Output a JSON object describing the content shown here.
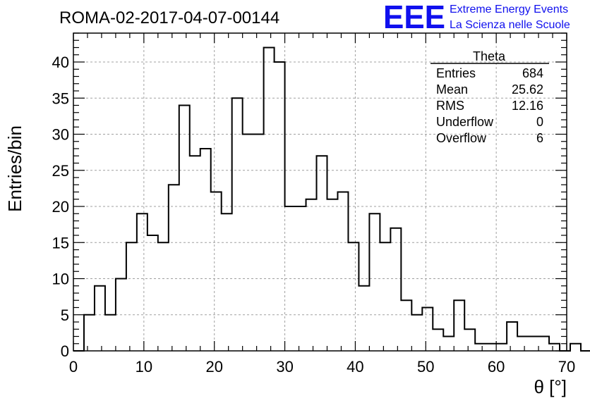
{
  "chart_data": {
    "type": "bar",
    "style": "step-histogram",
    "title": "ROMA-02-2017-04-07-00144",
    "xlabel": "θ [°]",
    "ylabel": "Entries/bin",
    "xlim": [
      0,
      70
    ],
    "ylim": [
      0,
      44
    ],
    "x_ticks": [
      0,
      10,
      20,
      30,
      40,
      50,
      60,
      70
    ],
    "y_ticks": [
      0,
      5,
      10,
      15,
      20,
      25,
      30,
      35,
      40
    ],
    "grid": true,
    "bin_edges_start": 0,
    "bin_width": 1.5,
    "values": [
      0,
      5,
      9,
      5,
      10,
      15,
      19,
      16,
      15,
      23,
      34,
      27,
      28,
      22,
      19,
      35,
      30,
      30,
      42,
      40,
      20,
      20,
      21,
      27,
      21,
      22,
      15,
      9,
      19,
      15,
      17,
      7,
      5,
      6,
      3,
      2,
      7,
      3,
      1,
      1,
      1,
      4,
      2,
      2,
      2,
      1,
      0,
      1,
      0
    ],
    "line_color": "#000000"
  },
  "stats_box": {
    "title": "Theta",
    "rows": [
      {
        "label": "Entries",
        "value": "684"
      },
      {
        "label": "Mean",
        "value": "25.62"
      },
      {
        "label": "RMS",
        "value": "12.16"
      },
      {
        "label": "Underflow",
        "value": "0"
      },
      {
        "label": "Overflow",
        "value": "6"
      }
    ]
  },
  "logo": {
    "text": "EEE",
    "line1": "Extreme Energy Events",
    "line2": "La Scienza nelle Scuole",
    "color": "#1010ee"
  }
}
